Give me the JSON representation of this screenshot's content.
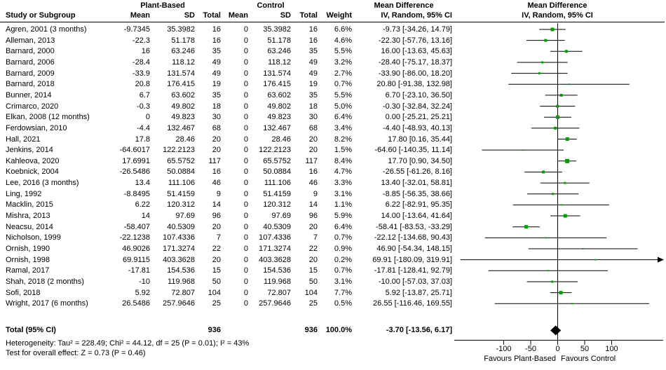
{
  "headers": {
    "study_col": "Study or Subgroup",
    "group1": "Plant-Based",
    "group2": "Control",
    "mean1": "Mean",
    "sd1": "SD",
    "total1": "Total",
    "mean2": "Mean",
    "sd2": "SD",
    "total2": "Total",
    "weight": "Weight",
    "md_stat_title": "Mean Difference",
    "md_stat_sub": "IV, Random, 95% CI",
    "md_plot_title": "Mean Difference",
    "md_plot_sub": "IV, Random, 95% CI"
  },
  "chart_data": {
    "type": "forest",
    "effect_measure": "Mean Difference",
    "model": "IV, Random, 95% CI",
    "studies": [
      {
        "name": "Agren, 2001 (3 months)",
        "mean1": "-9.7345",
        "sd1": "35.3982",
        "n1": "16",
        "mean2": "0",
        "sd2": "35.3982",
        "n2": "16",
        "weight": "6.6%",
        "w": 6.6,
        "ci": "-9.73 [-34.26, 14.79]",
        "md": -9.73,
        "lo": -34.26,
        "hi": 14.79
      },
      {
        "name": "Alleman, 2013",
        "mean1": "-22.3",
        "sd1": "51.178",
        "n1": "16",
        "mean2": "0",
        "sd2": "51.178",
        "n2": "16",
        "weight": "4.6%",
        "w": 4.6,
        "ci": "-22.30 [-57.76, 13.16]",
        "md": -22.3,
        "lo": -57.76,
        "hi": 13.16
      },
      {
        "name": "Barnard, 2000",
        "mean1": "16",
        "sd1": "63.246",
        "n1": "35",
        "mean2": "0",
        "sd2": "63.246",
        "n2": "35",
        "weight": "5.5%",
        "w": 5.5,
        "ci": "16.00 [-13.63, 45.63]",
        "md": 16.0,
        "lo": -13.63,
        "hi": 45.63
      },
      {
        "name": "Barnard, 2006",
        "mean1": "-28.4",
        "sd1": "118.12",
        "n1": "49",
        "mean2": "0",
        "sd2": "118.12",
        "n2": "49",
        "weight": "3.2%",
        "w": 3.2,
        "ci": "-28.40 [-75.17, 18.37]",
        "md": -28.4,
        "lo": -75.17,
        "hi": 18.37
      },
      {
        "name": "Barnard, 2009",
        "mean1": "-33.9",
        "sd1": "131.574",
        "n1": "49",
        "mean2": "0",
        "sd2": "131.574",
        "n2": "49",
        "weight": "2.7%",
        "w": 2.7,
        "ci": "-33.90 [-86.00, 18.20]",
        "md": -33.9,
        "lo": -86.0,
        "hi": 18.2
      },
      {
        "name": "Barnard, 2018",
        "mean1": "20.8",
        "sd1": "176.415",
        "n1": "19",
        "mean2": "0",
        "sd2": "176.415",
        "n2": "19",
        "weight": "0.7%",
        "w": 0.7,
        "ci": "20.80 [-91.38, 132.98]",
        "md": 20.8,
        "lo": -91.38,
        "hi": 132.98
      },
      {
        "name": "Bunner, 2014",
        "mean1": "6.7",
        "sd1": "63.602",
        "n1": "35",
        "mean2": "0",
        "sd2": "63.602",
        "n2": "35",
        "weight": "5.5%",
        "w": 5.5,
        "ci": "6.70 [-23.10, 36.50]",
        "md": 6.7,
        "lo": -23.1,
        "hi": 36.5
      },
      {
        "name": "Crimarco, 2020",
        "mean1": "-0.3",
        "sd1": "49.802",
        "n1": "18",
        "mean2": "0",
        "sd2": "49.802",
        "n2": "18",
        "weight": "5.0%",
        "w": 5.0,
        "ci": "-0.30 [-32.84, 32.24]",
        "md": -0.3,
        "lo": -32.84,
        "hi": 32.24
      },
      {
        "name": "Elkan, 2008 (12 months)",
        "mean1": "0",
        "sd1": "49.823",
        "n1": "30",
        "mean2": "0",
        "sd2": "49.823",
        "n2": "30",
        "weight": "6.4%",
        "w": 6.4,
        "ci": "0.00 [-25.21, 25.21]",
        "md": 0.0,
        "lo": -25.21,
        "hi": 25.21
      },
      {
        "name": "Ferdowsian, 2010",
        "mean1": "-4.4",
        "sd1": "132.467",
        "n1": "68",
        "mean2": "0",
        "sd2": "132.467",
        "n2": "68",
        "weight": "3.4%",
        "w": 3.4,
        "ci": "-4.40 [-48.93, 40.13]",
        "md": -4.4,
        "lo": -48.93,
        "hi": 40.13
      },
      {
        "name": "Hall, 2021",
        "mean1": "17.8",
        "sd1": "28.46",
        "n1": "20",
        "mean2": "0",
        "sd2": "28.46",
        "n2": "20",
        "weight": "8.2%",
        "w": 8.2,
        "ci": "17.80 [0.16, 35.44]",
        "md": 17.8,
        "lo": 0.16,
        "hi": 35.44
      },
      {
        "name": "Jenkins, 2014",
        "mean1": "-64.6017",
        "sd1": "122.2123",
        "n1": "20",
        "mean2": "0",
        "sd2": "122.2123",
        "n2": "20",
        "weight": "1.5%",
        "w": 1.5,
        "ci": "-64.60 [-140.35, 11.14]",
        "md": -64.6,
        "lo": -140.35,
        "hi": 11.14
      },
      {
        "name": "Kahleova, 2020",
        "mean1": "17.6991",
        "sd1": "65.5752",
        "n1": "117",
        "mean2": "0",
        "sd2": "65.5752",
        "n2": "117",
        "weight": "8.4%",
        "w": 8.4,
        "ci": "17.70 [0.90, 34.50]",
        "md": 17.7,
        "lo": 0.9,
        "hi": 34.5
      },
      {
        "name": "Koebnick, 2004",
        "mean1": "-26.5486",
        "sd1": "50.0884",
        "n1": "16",
        "mean2": "0",
        "sd2": "50.0884",
        "n2": "16",
        "weight": "4.7%",
        "w": 4.7,
        "ci": "-26.55 [-61.26, 8.16]",
        "md": -26.55,
        "lo": -61.26,
        "hi": 8.16
      },
      {
        "name": "Lee, 2016 (3 months)",
        "mean1": "13.4",
        "sd1": "111.106",
        "n1": "46",
        "mean2": "0",
        "sd2": "111.106",
        "n2": "46",
        "weight": "3.3%",
        "w": 3.3,
        "ci": "13.40 [-32.01, 58.81]",
        "md": 13.4,
        "lo": -32.01,
        "hi": 58.81
      },
      {
        "name": "Ling, 1992",
        "mean1": "-8.8495",
        "sd1": "51.4159",
        "n1": "9",
        "mean2": "0",
        "sd2": "51.4159",
        "n2": "9",
        "weight": "3.1%",
        "w": 3.1,
        "ci": "-8.85 [-56.35, 38.66]",
        "md": -8.85,
        "lo": -56.35,
        "hi": 38.66
      },
      {
        "name": "Macklin, 2015",
        "mean1": "6.22",
        "sd1": "120.312",
        "n1": "14",
        "mean2": "0",
        "sd2": "120.312",
        "n2": "14",
        "weight": "1.1%",
        "w": 1.1,
        "ci": "6.22 [-82.91, 95.35]",
        "md": 6.22,
        "lo": -82.91,
        "hi": 95.35
      },
      {
        "name": "Mishra, 2013",
        "mean1": "14",
        "sd1": "97.69",
        "n1": "96",
        "mean2": "0",
        "sd2": "97.69",
        "n2": "96",
        "weight": "5.9%",
        "w": 5.9,
        "ci": "14.00 [-13.64, 41.64]",
        "md": 14.0,
        "lo": -13.64,
        "hi": 41.64
      },
      {
        "name": "Neacsu, 2014",
        "mean1": "-58.407",
        "sd1": "40.5309",
        "n1": "20",
        "mean2": "0",
        "sd2": "40.5309",
        "n2": "20",
        "weight": "6.4%",
        "w": 6.4,
        "ci": "-58.41 [-83.53, -33.29]",
        "md": -58.41,
        "lo": -83.53,
        "hi": -33.29
      },
      {
        "name": "Nicholson, 1999",
        "mean1": "-22.1238",
        "sd1": "107.4336",
        "n1": "7",
        "mean2": "0",
        "sd2": "107.4336",
        "n2": "7",
        "weight": "0.7%",
        "w": 0.7,
        "ci": "-22.12 [-134.68, 90.43]",
        "md": -22.12,
        "lo": -134.68,
        "hi": 90.43
      },
      {
        "name": "Ornish, 1990",
        "mean1": "46.9026",
        "sd1": "171.3274",
        "n1": "22",
        "mean2": "0",
        "sd2": "171.3274",
        "n2": "22",
        "weight": "0.9%",
        "w": 0.9,
        "ci": "46.90 [-54.34, 148.15]",
        "md": 46.9,
        "lo": -54.34,
        "hi": 148.15
      },
      {
        "name": "Ornish, 1998",
        "mean1": "69.9115",
        "sd1": "403.3628",
        "n1": "20",
        "mean2": "0",
        "sd2": "403.3628",
        "n2": "20",
        "weight": "0.2%",
        "w": 0.2,
        "ci": "69.91 [-180.09, 319.91]",
        "md": 69.91,
        "lo": -180.09,
        "hi": 319.91
      },
      {
        "name": "Ramal, 2017",
        "mean1": "-17.81",
        "sd1": "154.536",
        "n1": "15",
        "mean2": "0",
        "sd2": "154.536",
        "n2": "15",
        "weight": "0.7%",
        "w": 0.7,
        "ci": "-17.81 [-128.41, 92.79]",
        "md": -17.81,
        "lo": -128.41,
        "hi": 92.79
      },
      {
        "name": "Shah, 2018 (2 months)",
        "mean1": "-10",
        "sd1": "119.968",
        "n1": "50",
        "mean2": "0",
        "sd2": "119.968",
        "n2": "50",
        "weight": "3.1%",
        "w": 3.1,
        "ci": "-10.00 [-57.03, 37.03]",
        "md": -10.0,
        "lo": -57.03,
        "hi": 37.03
      },
      {
        "name": "Sofi, 2018",
        "mean1": "5.92",
        "sd1": "72.807",
        "n1": "104",
        "mean2": "0",
        "sd2": "72.807",
        "n2": "104",
        "weight": "7.7%",
        "w": 7.7,
        "ci": "5.92 [-13.87, 25.71]",
        "md": 5.92,
        "lo": -13.87,
        "hi": 25.71
      },
      {
        "name": "Wright, 2017 (6 months)",
        "mean1": "26.5486",
        "sd1": "257.9646",
        "n1": "25",
        "mean2": "0",
        "sd2": "257.9646",
        "n2": "25",
        "weight": "0.5%",
        "w": 0.5,
        "ci": "26.55 [-116.46, 169.55]",
        "md": 26.55,
        "lo": -116.46,
        "hi": 169.55
      }
    ],
    "total": {
      "label": "Total (95% CI)",
      "n1": "936",
      "n2": "936",
      "weight": "100.0%",
      "ci": "-3.70 [-13.56, 6.17]",
      "md": -3.7,
      "lo": -13.56,
      "hi": 6.17
    },
    "axis": {
      "ticks": [
        "-100",
        "-50",
        "0",
        "50",
        "100"
      ],
      "tick_values": [
        -100,
        -50,
        0,
        50,
        100
      ],
      "display_range": [
        -190,
        188
      ]
    },
    "footer": {
      "heterogeneity": "Heterogeneity: Tau² = 228.49; Chi² = 44.12, df = 25 (P = 0.01); I² = 43%",
      "overall_effect": "Test for overall effect: Z = 0.73 (P = 0.46)",
      "favours_left": "Favours Plant-Based",
      "favours_right": "Favours Control"
    },
    "colors": {
      "square": "#00A000",
      "diamond": "#000000",
      "line": "#000000",
      "text": "#000000"
    }
  }
}
